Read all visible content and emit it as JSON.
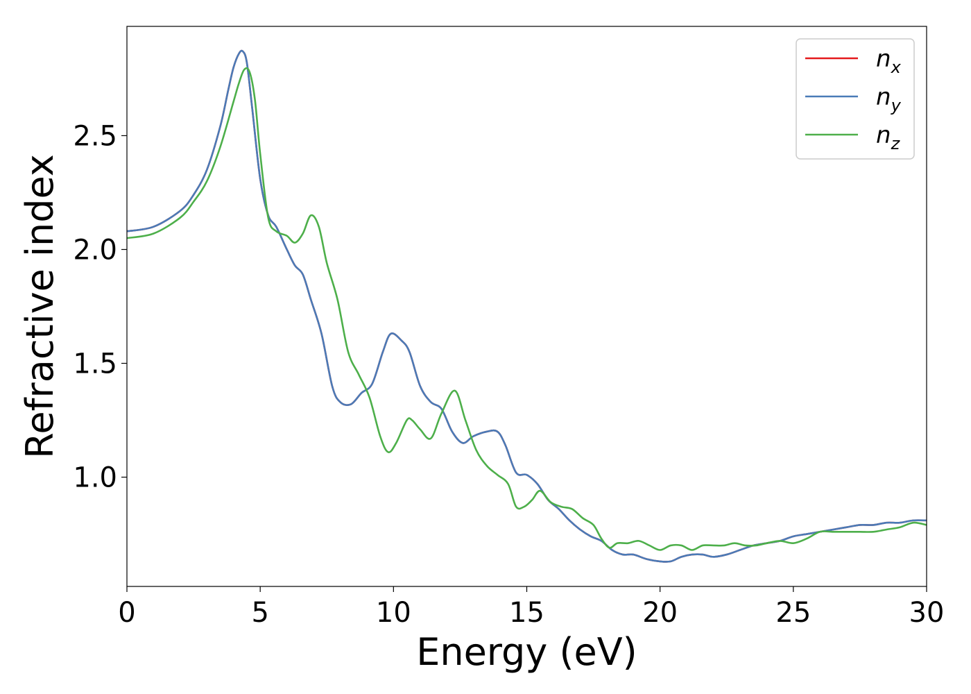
{
  "chart_data": {
    "type": "line",
    "title": "",
    "xlabel": "Energy (eV)",
    "ylabel": "Refractive index",
    "xlim": [
      0,
      30
    ],
    "ylim": [
      0.52,
      2.98
    ],
    "xticks": [
      0,
      5,
      10,
      15,
      20,
      25,
      30
    ],
    "yticks": [
      1.0,
      1.5,
      2.0,
      2.5
    ],
    "ytick_labels": [
      "1.0",
      "1.5",
      "2.0",
      "2.5"
    ],
    "grid": false,
    "legend_position": "top-right",
    "series": [
      {
        "name": "n_x",
        "name_main": "n",
        "name_sub": "x",
        "color": "#e41a1c",
        "x": [
          0,
          1,
          2,
          2.5,
          3,
          3.5,
          3.8,
          4,
          4.2,
          4.35,
          4.5,
          4.7,
          5,
          5.3,
          5.6,
          6,
          6.3,
          6.6,
          6.9,
          7.3,
          7.7,
          8,
          8.4,
          8.8,
          9.2,
          9.6,
          9.9,
          10.3,
          10.6,
          11,
          11.4,
          11.8,
          12.2,
          12.6,
          13,
          13.5,
          13.9,
          14.2,
          14.6,
          15,
          15.4,
          15.8,
          16.2,
          16.6,
          17,
          17.4,
          17.8,
          18.2,
          18.6,
          19,
          19.5,
          20,
          20.4,
          20.8,
          21.2,
          21.6,
          22,
          22.5,
          23,
          23.5,
          24,
          24.5,
          25,
          25.5,
          26,
          26.5,
          27,
          27.5,
          28,
          28.5,
          29,
          29.5,
          30
        ],
        "y": [
          2.08,
          2.1,
          2.17,
          2.24,
          2.35,
          2.54,
          2.7,
          2.8,
          2.86,
          2.87,
          2.82,
          2.62,
          2.31,
          2.15,
          2.1,
          2.0,
          1.93,
          1.89,
          1.78,
          1.63,
          1.4,
          1.33,
          1.32,
          1.37,
          1.41,
          1.55,
          1.63,
          1.6,
          1.55,
          1.4,
          1.33,
          1.3,
          1.2,
          1.15,
          1.18,
          1.2,
          1.2,
          1.14,
          1.02,
          1.01,
          0.97,
          0.9,
          0.86,
          0.81,
          0.77,
          0.74,
          0.72,
          0.68,
          0.66,
          0.66,
          0.64,
          0.63,
          0.63,
          0.65,
          0.66,
          0.66,
          0.65,
          0.66,
          0.68,
          0.7,
          0.71,
          0.72,
          0.74,
          0.75,
          0.76,
          0.77,
          0.78,
          0.79,
          0.79,
          0.8,
          0.8,
          0.81,
          0.81
        ]
      },
      {
        "name": "n_y",
        "name_main": "n",
        "name_sub": "y",
        "color": "#4a7bb7",
        "x": [
          0,
          1,
          2,
          2.5,
          3,
          3.5,
          3.8,
          4,
          4.2,
          4.35,
          4.5,
          4.7,
          5,
          5.3,
          5.6,
          6,
          6.3,
          6.6,
          6.9,
          7.3,
          7.7,
          8,
          8.4,
          8.8,
          9.2,
          9.6,
          9.9,
          10.3,
          10.6,
          11,
          11.4,
          11.8,
          12.2,
          12.6,
          13,
          13.5,
          13.9,
          14.2,
          14.6,
          15,
          15.4,
          15.8,
          16.2,
          16.6,
          17,
          17.4,
          17.8,
          18.2,
          18.6,
          19,
          19.5,
          20,
          20.4,
          20.8,
          21.2,
          21.6,
          22,
          22.5,
          23,
          23.5,
          24,
          24.5,
          25,
          25.5,
          26,
          26.5,
          27,
          27.5,
          28,
          28.5,
          29,
          29.5,
          30
        ],
        "y": [
          2.08,
          2.1,
          2.17,
          2.24,
          2.35,
          2.54,
          2.7,
          2.8,
          2.86,
          2.87,
          2.82,
          2.62,
          2.31,
          2.15,
          2.1,
          2.0,
          1.93,
          1.89,
          1.78,
          1.63,
          1.4,
          1.33,
          1.32,
          1.37,
          1.41,
          1.55,
          1.63,
          1.6,
          1.55,
          1.4,
          1.33,
          1.3,
          1.2,
          1.15,
          1.18,
          1.2,
          1.2,
          1.14,
          1.02,
          1.01,
          0.97,
          0.9,
          0.86,
          0.81,
          0.77,
          0.74,
          0.72,
          0.68,
          0.66,
          0.66,
          0.64,
          0.63,
          0.63,
          0.65,
          0.66,
          0.66,
          0.65,
          0.66,
          0.68,
          0.7,
          0.71,
          0.72,
          0.74,
          0.75,
          0.76,
          0.77,
          0.78,
          0.79,
          0.79,
          0.8,
          0.8,
          0.81,
          0.81
        ]
      },
      {
        "name": "n_z",
        "name_main": "n",
        "name_sub": "z",
        "color": "#4daf4a",
        "x": [
          0,
          1,
          2,
          2.5,
          3,
          3.5,
          4,
          4.2,
          4.4,
          4.6,
          4.8,
          5,
          5.3,
          5.6,
          6,
          6.3,
          6.6,
          6.9,
          7.2,
          7.5,
          7.9,
          8.3,
          8.7,
          9.1,
          9.5,
          9.8,
          10.1,
          10.5,
          10.7,
          11,
          11.4,
          11.8,
          12.3,
          12.7,
          13.1,
          13.5,
          13.9,
          14.3,
          14.6,
          14.9,
          15.2,
          15.5,
          15.9,
          16.3,
          16.7,
          17.1,
          17.5,
          17.8,
          18.1,
          18.4,
          18.8,
          19.2,
          19.6,
          20,
          20.4,
          20.8,
          21.2,
          21.6,
          22,
          22.4,
          22.8,
          23.2,
          23.6,
          24,
          24.5,
          25,
          25.5,
          26,
          26.5,
          27,
          27.5,
          28,
          28.5,
          29,
          29.5,
          30
        ],
        "y": [
          2.05,
          2.07,
          2.14,
          2.21,
          2.3,
          2.45,
          2.65,
          2.73,
          2.79,
          2.78,
          2.66,
          2.42,
          2.14,
          2.08,
          2.06,
          2.03,
          2.07,
          2.15,
          2.1,
          1.94,
          1.78,
          1.55,
          1.45,
          1.35,
          1.18,
          1.11,
          1.15,
          1.25,
          1.25,
          1.21,
          1.17,
          1.28,
          1.38,
          1.25,
          1.12,
          1.05,
          1.01,
          0.97,
          0.87,
          0.87,
          0.9,
          0.94,
          0.89,
          0.87,
          0.86,
          0.82,
          0.79,
          0.73,
          0.69,
          0.71,
          0.71,
          0.72,
          0.7,
          0.68,
          0.7,
          0.7,
          0.68,
          0.7,
          0.7,
          0.7,
          0.71,
          0.7,
          0.7,
          0.71,
          0.72,
          0.71,
          0.73,
          0.76,
          0.76,
          0.76,
          0.76,
          0.76,
          0.77,
          0.78,
          0.8,
          0.79
        ]
      }
    ]
  }
}
